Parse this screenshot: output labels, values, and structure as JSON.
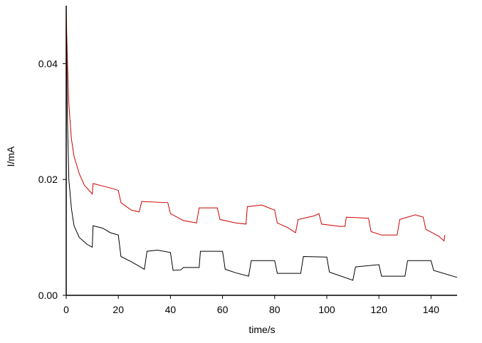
{
  "chart_data": {
    "type": "line",
    "x_label": "time/s",
    "y_label": "I/mA",
    "xlim": [
      0,
      150
    ],
    "ylim": [
      0,
      0.05
    ],
    "xticks": [
      0,
      20,
      40,
      60,
      80,
      100,
      120,
      140
    ],
    "yticks": [
      {
        "value": 0,
        "label": "0.00"
      },
      {
        "value": 0.02,
        "label": "0.02"
      },
      {
        "value": 0.04,
        "label": "0.04"
      }
    ],
    "series": [
      {
        "color": "#cc0000",
        "x": [
          0,
          0.5,
          1,
          2,
          3,
          5,
          7,
          10,
          10.3,
          18,
          20,
          21,
          25,
          28,
          29,
          39,
          40,
          45,
          50,
          51,
          58,
          59,
          65,
          69,
          69.5,
          75,
          80,
          81,
          85,
          88,
          89,
          95,
          97,
          98,
          105,
          107,
          107.5,
          116,
          117,
          121,
          127,
          128,
          134,
          137,
          138,
          143,
          145,
          145.3
        ],
        "values": [
          0.049,
          0.04,
          0.033,
          0.027,
          0.024,
          0.021,
          0.019,
          0.0175,
          0.0193,
          0.0184,
          0.0181,
          0.016,
          0.0147,
          0.0144,
          0.0162,
          0.016,
          0.0141,
          0.0129,
          0.0125,
          0.0151,
          0.0151,
          0.0131,
          0.0125,
          0.0123,
          0.0153,
          0.0156,
          0.0147,
          0.0125,
          0.0117,
          0.0108,
          0.0131,
          0.0137,
          0.0141,
          0.0123,
          0.0119,
          0.0119,
          0.0135,
          0.0133,
          0.011,
          0.0104,
          0.0104,
          0.0131,
          0.0139,
          0.0135,
          0.0114,
          0.0102,
          0.0094,
          0.0104
        ]
      },
      {
        "color": "#000000",
        "x": [
          0,
          0.5,
          1,
          2,
          3,
          5,
          8,
          10,
          10.3,
          14,
          17,
          20,
          21,
          25,
          30,
          31,
          35,
          40,
          41,
          44,
          45,
          51,
          51.5,
          60,
          61,
          65,
          70,
          71,
          80,
          81,
          90,
          91,
          100,
          101,
          110,
          111,
          120,
          121,
          130,
          131,
          140,
          141,
          150
        ],
        "values": [
          0.049,
          0.03,
          0.02,
          0.015,
          0.012,
          0.01,
          0.0088,
          0.0083,
          0.012,
          0.0116,
          0.0108,
          0.0104,
          0.0067,
          0.0058,
          0.0045,
          0.0076,
          0.0078,
          0.0074,
          0.0043,
          0.0044,
          0.0048,
          0.0048,
          0.0076,
          0.0076,
          0.0045,
          0.0039,
          0.0033,
          0.006,
          0.006,
          0.0038,
          0.0038,
          0.0067,
          0.0066,
          0.004,
          0.0026,
          0.0049,
          0.0053,
          0.0033,
          0.0033,
          0.006,
          0.006,
          0.0043,
          0.0031
        ]
      }
    ]
  }
}
